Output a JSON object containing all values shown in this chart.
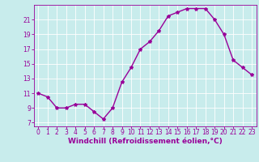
{
  "x": [
    0,
    1,
    2,
    3,
    4,
    5,
    6,
    7,
    8,
    9,
    10,
    11,
    12,
    13,
    14,
    15,
    16,
    17,
    18,
    19,
    20,
    21,
    22,
    23
  ],
  "y": [
    11,
    10.5,
    9,
    9,
    9.5,
    9.5,
    8.5,
    7.5,
    9,
    12.5,
    14.5,
    17,
    18,
    19.5,
    21.5,
    22,
    22.5,
    22.5,
    22.5,
    21,
    19,
    15.5,
    14.5,
    13.5
  ],
  "line_color": "#990099",
  "marker": "*",
  "marker_size": 3,
  "bg_color": "#c8ecec",
  "grid_color": "#ffffff",
  "xlabel": "Windchill (Refroidissement éolien,°C)",
  "xlim": [
    -0.5,
    23.5
  ],
  "ylim": [
    6.5,
    23
  ],
  "yticks": [
    7,
    9,
    11,
    13,
    15,
    17,
    19,
    21
  ],
  "xticks": [
    0,
    1,
    2,
    3,
    4,
    5,
    6,
    7,
    8,
    9,
    10,
    11,
    12,
    13,
    14,
    15,
    16,
    17,
    18,
    19,
    20,
    21,
    22,
    23
  ],
  "tick_color": "#990099",
  "label_color": "#990099",
  "axis_color": "#990099",
  "font_size": 5.5,
  "label_font_size": 6.5,
  "line_width": 1.0
}
